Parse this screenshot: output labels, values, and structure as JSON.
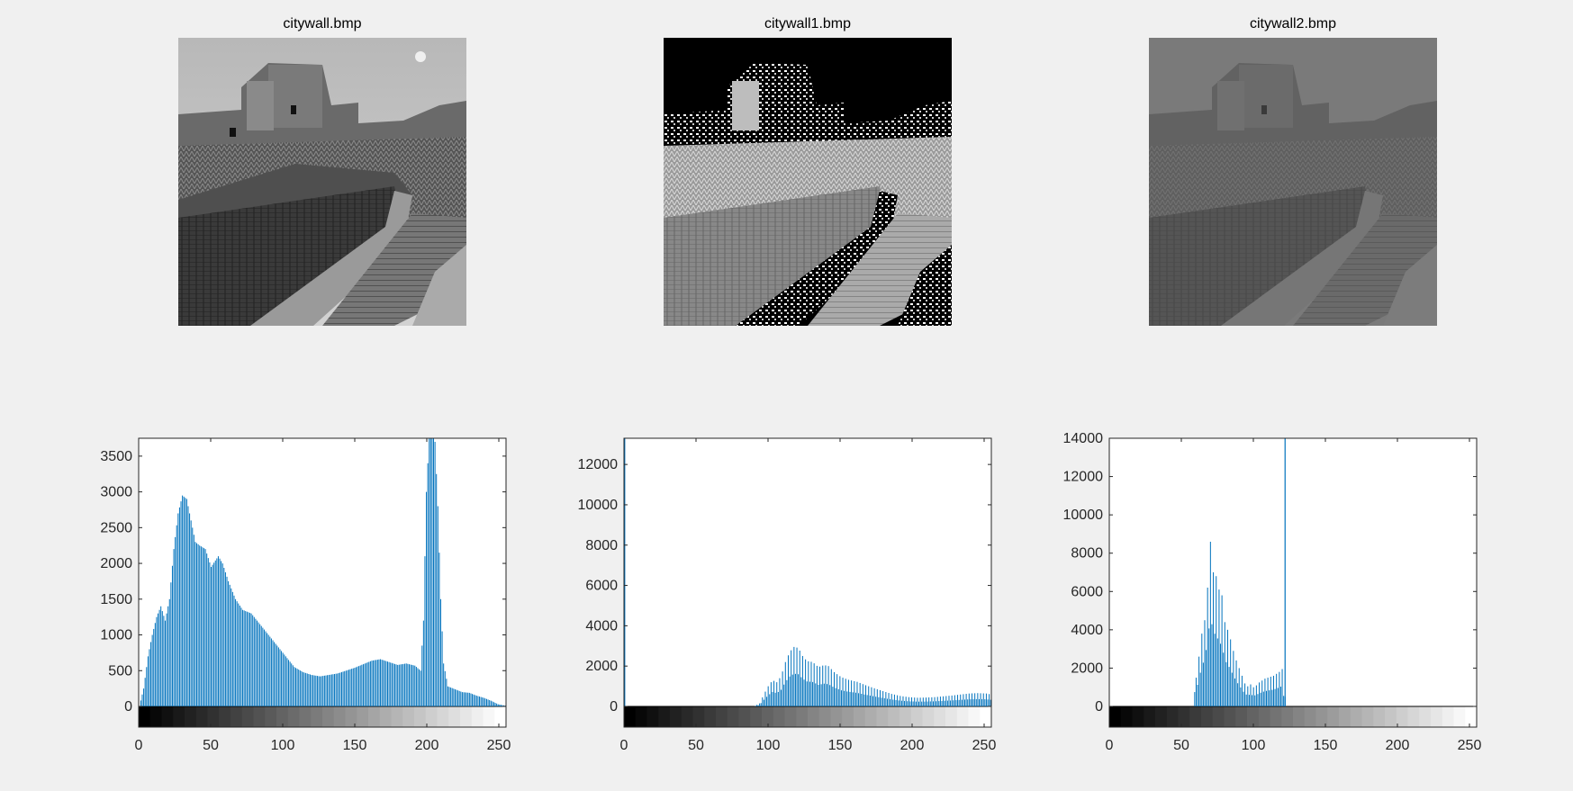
{
  "figure_window": {
    "background": "#f0f0f0"
  },
  "images": [
    {
      "title": "citywall.bmp",
      "variant": "original"
    },
    {
      "title": "citywall1.bmp",
      "variant": "thresholded"
    },
    {
      "title": "citywall2.bmp",
      "variant": "compressed"
    }
  ],
  "chart_data": [
    {
      "type": "bar",
      "title": "",
      "xlabel": "",
      "ylabel": "",
      "xlim": [
        0,
        255
      ],
      "ylim": [
        -300,
        3750
      ],
      "xticks": [
        0,
        50,
        100,
        150,
        200,
        250
      ],
      "yticks": [
        0,
        500,
        1000,
        1500,
        2000,
        2500,
        3000,
        3500
      ],
      "bar_color": "#0072bd",
      "colorbar": "grayscale",
      "grid": false,
      "series": [
        {
          "x_start": 0,
          "values": []
        }
      ],
      "envelope": [
        [
          0,
          0
        ],
        [
          3,
          250
        ],
        [
          6,
          700
        ],
        [
          9,
          1000
        ],
        [
          12,
          1250
        ],
        [
          15,
          1400
        ],
        [
          18,
          1200
        ],
        [
          21,
          1500
        ],
        [
          24,
          2200
        ],
        [
          27,
          2700
        ],
        [
          30,
          2950
        ],
        [
          33,
          2900
        ],
        [
          36,
          2600
        ],
        [
          39,
          2300
        ],
        [
          42,
          2250
        ],
        [
          46,
          2200
        ],
        [
          50,
          1950
        ],
        [
          55,
          2100
        ],
        [
          58,
          2000
        ],
        [
          62,
          1750
        ],
        [
          67,
          1500
        ],
        [
          72,
          1350
        ],
        [
          78,
          1300
        ],
        [
          84,
          1150
        ],
        [
          90,
          1000
        ],
        [
          96,
          850
        ],
        [
          102,
          700
        ],
        [
          108,
          550
        ],
        [
          114,
          480
        ],
        [
          120,
          440
        ],
        [
          126,
          420
        ],
        [
          132,
          440
        ],
        [
          138,
          460
        ],
        [
          144,
          500
        ],
        [
          150,
          540
        ],
        [
          156,
          590
        ],
        [
          162,
          640
        ],
        [
          168,
          660
        ],
        [
          174,
          620
        ],
        [
          180,
          580
        ],
        [
          186,
          600
        ],
        [
          192,
          570
        ],
        [
          196,
          500
        ],
        [
          198,
          1200
        ],
        [
          200,
          3000
        ],
        [
          202,
          3800
        ],
        [
          204,
          3800
        ],
        [
          206,
          3700
        ],
        [
          208,
          2800
        ],
        [
          210,
          1500
        ],
        [
          212,
          600
        ],
        [
          215,
          280
        ],
        [
          220,
          240
        ],
        [
          225,
          200
        ],
        [
          230,
          190
        ],
        [
          235,
          150
        ],
        [
          240,
          120
        ],
        [
          245,
          80
        ],
        [
          250,
          30
        ],
        [
          255,
          10
        ]
      ]
    },
    {
      "type": "bar",
      "title": "",
      "xlabel": "",
      "ylabel": "",
      "xlim": [
        0,
        255
      ],
      "ylim": [
        -900,
        13300
      ],
      "xticks": [
        0,
        50,
        100,
        150,
        200,
        250
      ],
      "yticks": [
        0,
        2000,
        4000,
        6000,
        8000,
        10000,
        12000
      ],
      "bar_color": "#0072bd",
      "colorbar": "grayscale",
      "grid": false,
      "spike": {
        "x": 0,
        "value": 13300
      },
      "series": [
        {
          "x_start": 0,
          "values": []
        }
      ],
      "envelope": [
        [
          0,
          0
        ],
        [
          90,
          0
        ],
        [
          94,
          150
        ],
        [
          97,
          600
        ],
        [
          100,
          1000
        ],
        [
          103,
          1300
        ],
        [
          106,
          1200
        ],
        [
          109,
          1500
        ],
        [
          112,
          2200
        ],
        [
          115,
          2700
        ],
        [
          118,
          2950
        ],
        [
          121,
          2900
        ],
        [
          124,
          2500
        ],
        [
          127,
          2250
        ],
        [
          131,
          2200
        ],
        [
          135,
          1950
        ],
        [
          139,
          2050
        ],
        [
          142,
          2000
        ],
        [
          146,
          1700
        ],
        [
          151,
          1450
        ],
        [
          156,
          1320
        ],
        [
          162,
          1220
        ],
        [
          168,
          1050
        ],
        [
          174,
          900
        ],
        [
          180,
          760
        ],
        [
          186,
          620
        ],
        [
          192,
          520
        ],
        [
          198,
          460
        ],
        [
          204,
          430
        ],
        [
          210,
          440
        ],
        [
          216,
          460
        ],
        [
          222,
          500
        ],
        [
          228,
          540
        ],
        [
          234,
          590
        ],
        [
          240,
          640
        ],
        [
          246,
          660
        ],
        [
          252,
          640
        ],
        [
          255,
          600
        ]
      ]
    },
    {
      "type": "bar",
      "title": "",
      "xlabel": "",
      "ylabel": "",
      "xlim": [
        0,
        255
      ],
      "ylim": [
        -1100,
        14000
      ],
      "xticks": [
        0,
        50,
        100,
        150,
        200,
        250
      ],
      "yticks": [
        0,
        2000,
        4000,
        6000,
        8000,
        10000,
        12000,
        14000
      ],
      "bar_color": "#0072bd",
      "colorbar": "grayscale",
      "grid": false,
      "spike": {
        "x": 122,
        "value": 14000
      },
      "series": [
        {
          "x_start": 0,
          "values": []
        }
      ],
      "envelope": [
        [
          0,
          0
        ],
        [
          58,
          0
        ],
        [
          60,
          1500
        ],
        [
          62,
          2600
        ],
        [
          64,
          3800
        ],
        [
          66,
          4500
        ],
        [
          68,
          6200
        ],
        [
          70,
          8600
        ],
        [
          72,
          7000
        ],
        [
          74,
          6800
        ],
        [
          76,
          6100
        ],
        [
          78,
          5800
        ],
        [
          80,
          4400
        ],
        [
          82,
          4000
        ],
        [
          84,
          3500
        ],
        [
          86,
          2900
        ],
        [
          88,
          2400
        ],
        [
          90,
          2000
        ],
        [
          92,
          1600
        ],
        [
          94,
          1200
        ],
        [
          96,
          1050
        ],
        [
          98,
          1150
        ],
        [
          100,
          1000
        ],
        [
          102,
          1100
        ],
        [
          104,
          1250
        ],
        [
          106,
          1350
        ],
        [
          108,
          1450
        ],
        [
          110,
          1500
        ],
        [
          112,
          1550
        ],
        [
          114,
          1600
        ],
        [
          116,
          1700
        ],
        [
          118,
          1800
        ],
        [
          120,
          1950
        ],
        [
          121,
          1000
        ],
        [
          123,
          0
        ],
        [
          255,
          0
        ]
      ]
    }
  ]
}
